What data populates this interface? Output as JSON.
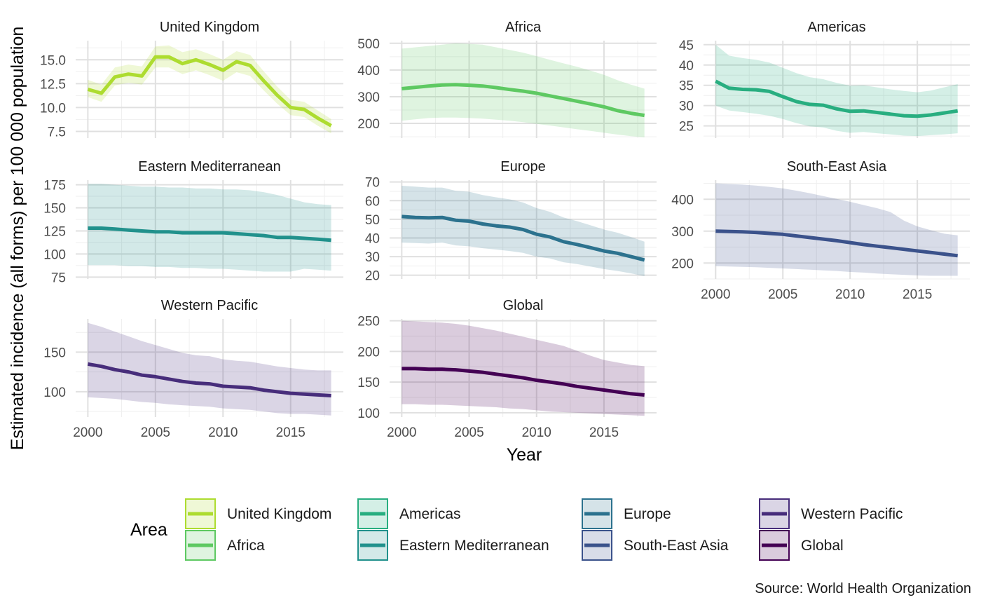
{
  "chart_data": {
    "type": "line",
    "xlabel": "Year",
    "ylabel": "Estimated incidence (all forms) per 100 000 population",
    "caption": "Source: World Health Organization",
    "legend": {
      "title": "Area",
      "placement": "bottom"
    },
    "x": [
      2000,
      2001,
      2002,
      2003,
      2004,
      2005,
      2006,
      2007,
      2008,
      2009,
      2010,
      2011,
      2012,
      2013,
      2014,
      2015,
      2016,
      2017,
      2018
    ],
    "x_ticks": [
      2000,
      2005,
      2010,
      2015
    ],
    "series": [
      {
        "name": "United Kingdom",
        "color": "#addc30",
        "ylim": [
          6.8,
          17
        ],
        "y_ticks": [
          7.5,
          10.0,
          12.5,
          15.0
        ],
        "y_tick_labels": [
          "7.5",
          "10.0",
          "12.5",
          "15.0"
        ],
        "values": [
          11.9,
          11.5,
          13.2,
          13.5,
          13.3,
          15.3,
          15.3,
          14.6,
          15.0,
          14.5,
          13.9,
          14.8,
          14.4,
          12.8,
          11.3,
          10.0,
          9.8,
          8.9,
          8.1
        ],
        "lower": [
          11.1,
          10.6,
          12.3,
          12.6,
          12.4,
          14.2,
          14.2,
          13.5,
          13.9,
          13.4,
          12.8,
          13.7,
          13.3,
          11.8,
          10.4,
          9.2,
          9.0,
          8.1,
          7.3
        ],
        "upper": [
          12.9,
          12.4,
          14.2,
          14.5,
          14.3,
          16.4,
          16.5,
          15.8,
          16.1,
          15.6,
          15.0,
          15.9,
          15.5,
          13.8,
          12.2,
          10.8,
          10.6,
          9.7,
          8.8
        ]
      },
      {
        "name": "Africa",
        "color": "#5ec962",
        "ylim": [
          145,
          510
        ],
        "y_ticks": [
          200,
          300,
          400,
          500
        ],
        "y_tick_labels": [
          "200",
          "300",
          "400",
          "500"
        ],
        "values": [
          330,
          335,
          340,
          344,
          345,
          343,
          340,
          334,
          327,
          321,
          313,
          303,
          293,
          283,
          273,
          262,
          248,
          238,
          230
        ],
        "lower": [
          210,
          215,
          220,
          222,
          222,
          220,
          218,
          214,
          210,
          205,
          198,
          192,
          185,
          178,
          172,
          165,
          158,
          152,
          148
        ],
        "upper": [
          480,
          485,
          490,
          495,
          500,
          498,
          495,
          485,
          475,
          465,
          452,
          438,
          425,
          412,
          398,
          382,
          362,
          345,
          330
        ]
      },
      {
        "name": "Americas",
        "color": "#28ae80",
        "ylim": [
          22,
          46
        ],
        "y_ticks": [
          25,
          30,
          35,
          40,
          45
        ],
        "y_tick_labels": [
          "25",
          "30",
          "35",
          "40",
          "45"
        ],
        "values": [
          36.0,
          34.3,
          34.0,
          33.9,
          33.5,
          32.2,
          31.0,
          30.3,
          30.1,
          29.2,
          28.6,
          28.7,
          28.3,
          27.9,
          27.5,
          27.4,
          27.7,
          28.2,
          28.7
        ],
        "lower": [
          30.0,
          28.8,
          28.4,
          28.0,
          27.5,
          26.7,
          25.7,
          24.9,
          24.6,
          23.8,
          23.3,
          23.5,
          23.2,
          22.9,
          22.6,
          22.5,
          22.7,
          22.9,
          23.2
        ],
        "upper": [
          45.0,
          42.3,
          41.7,
          41.3,
          40.6,
          39.3,
          38.0,
          37.0,
          36.5,
          35.6,
          34.9,
          35.0,
          34.5,
          34.0,
          33.6,
          33.3,
          33.7,
          34.5,
          35.3
        ]
      },
      {
        "name": "Eastern Mediterranean",
        "color": "#21918c",
        "ylim": [
          73,
          180
        ],
        "y_ticks": [
          75,
          100,
          125,
          150,
          175
        ],
        "y_tick_labels": [
          "75",
          "100",
          "125",
          "150",
          "175"
        ],
        "values": [
          128,
          128,
          127,
          126,
          125,
          124,
          124,
          123,
          123,
          123,
          123,
          122,
          121,
          120,
          118,
          118,
          117,
          116,
          115
        ],
        "lower": [
          88,
          88,
          88,
          87,
          87,
          86,
          86,
          85,
          85,
          84,
          84,
          83,
          82,
          81,
          81,
          81,
          84,
          83,
          82
        ],
        "upper": [
          176,
          176,
          175,
          174,
          173,
          173,
          172,
          172,
          171,
          171,
          170,
          170,
          169,
          167,
          164,
          160,
          156,
          154,
          153
        ]
      },
      {
        "name": "Europe",
        "color": "#2c728e",
        "ylim": [
          18,
          71
        ],
        "y_ticks": [
          20,
          30,
          40,
          50,
          60,
          70
        ],
        "y_tick_labels": [
          "20",
          "30",
          "40",
          "50",
          "60",
          "70"
        ],
        "values": [
          51.5,
          51.0,
          50.8,
          51.0,
          49.5,
          49.0,
          47.5,
          46.5,
          45.8,
          44.5,
          42.0,
          40.5,
          38.0,
          36.5,
          34.8,
          33.0,
          31.8,
          30.0,
          28.2
        ],
        "lower": [
          37.5,
          37.3,
          37.0,
          37.5,
          36.0,
          35.5,
          34.5,
          33.8,
          33.0,
          32.0,
          30.0,
          29.0,
          27.0,
          26.0,
          24.7,
          23.3,
          22.3,
          21.0,
          19.5
        ],
        "upper": [
          68.0,
          67.5,
          67.0,
          67.0,
          65.3,
          64.8,
          63.0,
          61.8,
          60.7,
          59.0,
          56.0,
          54.0,
          51.0,
          49.0,
          46.8,
          44.5,
          42.8,
          40.5,
          38.0
        ]
      },
      {
        "name": "South-East Asia",
        "color": "#3b528b",
        "ylim": [
          150,
          460
        ],
        "y_ticks": [
          200,
          300,
          400
        ],
        "y_tick_labels": [
          "200",
          "300",
          "400"
        ],
        "values": [
          300,
          299,
          298,
          296,
          293,
          290,
          285,
          280,
          275,
          270,
          264,
          258,
          253,
          248,
          243,
          238,
          233,
          228,
          223
        ],
        "lower": [
          190,
          189,
          188,
          187,
          185,
          183,
          181,
          179,
          177,
          175,
          172,
          170,
          167,
          165,
          163,
          161,
          160,
          160,
          160
        ],
        "upper": [
          450,
          448,
          446,
          443,
          439,
          434,
          427,
          419,
          410,
          401,
          392,
          382,
          372,
          360,
          333,
          315,
          303,
          292,
          287
        ]
      },
      {
        "name": "Western Pacific",
        "color": "#472d7b",
        "ylim": [
          68,
          192
        ],
        "y_ticks": [
          100,
          150
        ],
        "y_tick_labels": [
          "100",
          "150"
        ],
        "values": [
          135,
          132,
          128,
          125,
          121,
          119,
          116,
          113,
          111,
          110,
          107,
          106,
          105,
          102,
          100,
          98,
          97,
          96,
          95
        ],
        "lower": [
          93,
          92,
          91,
          89,
          87,
          86,
          84,
          83,
          82,
          81,
          79,
          78,
          77,
          75,
          73,
          72,
          72,
          71,
          70
        ],
        "upper": [
          187,
          182,
          176,
          170,
          164,
          159,
          154,
          149,
          146,
          145,
          141,
          139,
          138,
          135,
          132,
          130,
          128,
          127,
          127
        ]
      },
      {
        "name": "Global",
        "color": "#440154",
        "ylim": [
          93,
          253
        ],
        "y_ticks": [
          100,
          150,
          200,
          250
        ],
        "y_tick_labels": [
          "100",
          "150",
          "200",
          "250"
        ],
        "values": [
          172,
          172,
          171,
          171,
          170,
          168,
          166,
          163,
          160,
          157,
          153,
          150,
          147,
          143,
          140,
          137,
          134,
          131,
          129
        ],
        "lower": [
          114,
          114,
          113,
          113,
          112,
          111,
          110,
          109,
          107,
          106,
          104,
          102,
          101,
          100,
          99,
          98,
          97,
          96,
          95
        ],
        "upper": [
          250,
          249,
          248,
          247,
          245,
          242,
          238,
          234,
          229,
          224,
          219,
          214,
          209,
          201,
          193,
          186,
          182,
          178,
          176
        ]
      }
    ]
  }
}
